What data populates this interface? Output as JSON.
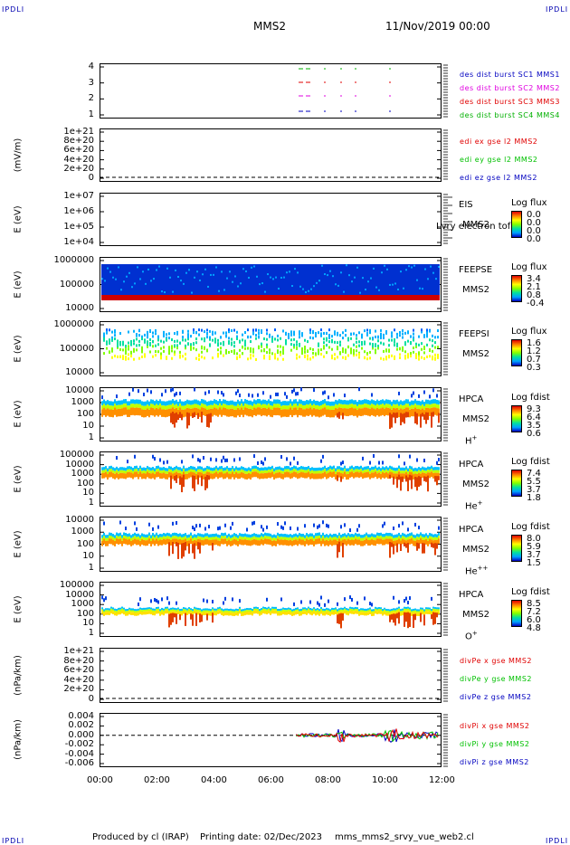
{
  "header": {
    "left_corner": "IPDLI",
    "right_corner": "IPDLI",
    "title": "MMS2",
    "date": "11/Nov/2019 00:00"
  },
  "footer": {
    "credit": "Produced by cl (IRAP)",
    "printing": "Printing date: 02/Dec/2023",
    "file": "mms_mms2_srvy_vue_web2.cl",
    "bl_corner": "IPDLI",
    "br_corner": "IPDLI"
  },
  "colors": {
    "mms1": "#0000c0",
    "mms2": "#e000e0",
    "mms3": "#e00000",
    "mms4": "#00b000",
    "x": "#e00000",
    "y": "#00c000",
    "z": "#0000c0"
  },
  "chart_data": [
    {
      "type": "scatter",
      "ylabel": "",
      "y_ticks": [
        "4",
        "3",
        "2",
        "1"
      ],
      "legend": [
        "des dist burst SC1 MMS1",
        "des dist burst SC2 MMS2",
        "des dist burst SC3 MMS3",
        "des dist burst SC4 MMS4"
      ]
    },
    {
      "type": "line",
      "ylabel": "(mV/m)",
      "y_ticks": [
        "1e+21",
        "8e+20",
        "6e+20",
        "4e+20",
        "2e+20",
        "0"
      ],
      "legend": [
        "edi ex gse l2 MMS2",
        "edi ey gse l2 MMS2",
        "edi ez gse l2 MMS2"
      ]
    },
    {
      "type": "heatmap",
      "ylabel": "E (eV)",
      "y_ticks": [
        "1e+07",
        "1e+06",
        "1e+05",
        "1e+04"
      ],
      "side": [
        "EIS",
        "MMS2"
      ],
      "overlay": "Lvry electron tof",
      "cb_title": "Log flux",
      "cb_values": [
        "0.0",
        "0.0",
        "0.0",
        "0.0"
      ]
    },
    {
      "type": "heatmap",
      "ylabel": "E (eV)",
      "y_ticks": [
        "1000000",
        "100000",
        "10000"
      ],
      "side": [
        "FEEPSE",
        "MMS2"
      ],
      "cb_title": "Log flux",
      "cb_values": [
        "3.4",
        "2.1",
        "0.8",
        "-0.4"
      ]
    },
    {
      "type": "heatmap",
      "ylabel": "E (eV)",
      "y_ticks": [
        "1000000",
        "100000",
        "10000"
      ],
      "side": [
        "FEEPSI",
        "MMS2"
      ],
      "cb_title": "Log flux",
      "cb_values": [
        "1.6",
        "1.2",
        "0.7",
        "0.3"
      ]
    },
    {
      "type": "heatmap",
      "ylabel": "E (eV)",
      "y_ticks": [
        "10000",
        "1000",
        "100",
        "10",
        "1"
      ],
      "side": [
        "HPCA",
        "MMS2",
        "H",
        "+"
      ],
      "cb_title": "Log fdist",
      "cb_values": [
        "9.3",
        "6.4",
        "3.5",
        "0.6"
      ]
    },
    {
      "type": "heatmap",
      "ylabel": "E (eV)",
      "y_ticks": [
        "100000",
        "10000",
        "1000",
        "100",
        "10",
        "1"
      ],
      "side": [
        "HPCA",
        "MMS2",
        "He",
        "+"
      ],
      "cb_title": "Log fdist",
      "cb_values": [
        "7.4",
        "5.5",
        "3.7",
        "1.8"
      ]
    },
    {
      "type": "heatmap",
      "ylabel": "E (eV)",
      "y_ticks": [
        "10000",
        "1000",
        "100",
        "10",
        "1"
      ],
      "side": [
        "HPCA",
        "MMS2",
        "He",
        "++"
      ],
      "cb_title": "Log fdist",
      "cb_values": [
        "8.0",
        "5.9",
        "3.7",
        "1.5"
      ]
    },
    {
      "type": "heatmap",
      "ylabel": "E (eV)",
      "y_ticks": [
        "100000",
        "10000",
        "1000",
        "100",
        "10",
        "1"
      ],
      "side": [
        "HPCA",
        "MMS2",
        "O",
        "+"
      ],
      "cb_title": "Log fdist",
      "cb_values": [
        "8.5",
        "7.2",
        "6.0",
        "4.8"
      ]
    },
    {
      "type": "line",
      "ylabel": "(nPa/km)",
      "y_ticks": [
        "1e+21",
        "8e+20",
        "6e+20",
        "4e+20",
        "2e+20",
        "0"
      ],
      "legend": [
        "divPe x gse MMS2",
        "divPe y gse MMS2",
        "divPe z gse MMS2"
      ]
    },
    {
      "type": "line",
      "ylabel": "(nPa/km)",
      "y_ticks": [
        "0.004",
        "0.002",
        "0.000",
        "-0.002",
        "-0.004",
        "-0.006"
      ],
      "legend": [
        "divPi x gse MMS2",
        "divPi y gse MMS2",
        "divPi z gse MMS2"
      ]
    }
  ],
  "x_ticks": [
    "00:00",
    "02:00",
    "04:00",
    "06:00",
    "08:00",
    "10:00",
    "12:00"
  ]
}
